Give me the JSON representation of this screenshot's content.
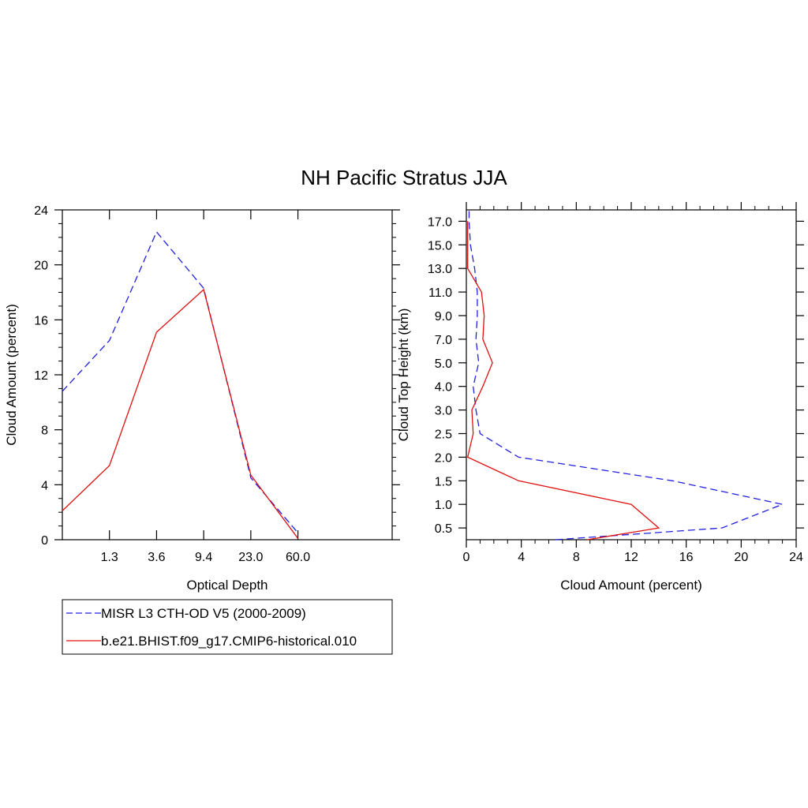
{
  "figure": {
    "title": "NH Pacific Stratus JJA"
  },
  "legend": {
    "entries": [
      "MISR L3 CTH-OD V5 (2000-2009)",
      "b.e21.BHIST.f09_g17.CMIP6-historical.010"
    ]
  },
  "colors": {
    "obs": "#2020e0",
    "model": "#e01010"
  },
  "chart_data": [
    {
      "type": "line",
      "xlabel": "Optical Depth",
      "ylabel": "Cloud Amount (percent)",
      "x_tick_labels": [
        "1.3",
        "3.6",
        "9.4",
        "23.0",
        "60.0"
      ],
      "y_ticks": [
        0,
        4,
        8,
        12,
        16,
        20,
        24
      ],
      "ylim": [
        0,
        24
      ],
      "x_bins": 7,
      "series": [
        {
          "name": "MISR L3 CTH-OD V5 (2000-2009)",
          "style": "dashed",
          "values": [
            10.8,
            14.5,
            22.4,
            18.3,
            4.5,
            0.5
          ]
        },
        {
          "name": "b.e21.BHIST.f09_g17.CMIP6-historical.010",
          "style": "solid",
          "values": [
            2.1,
            5.4,
            15.1,
            18.2,
            4.7,
            0.1
          ]
        }
      ]
    },
    {
      "type": "line",
      "xlabel": "Cloud Amount (percent)",
      "ylabel": "Cloud Top Height (km)",
      "x_ticks": [
        0,
        4,
        8,
        12,
        16,
        20,
        24
      ],
      "xlim": [
        0,
        24
      ],
      "y_tick_labels": [
        "0.5",
        "1.0",
        "1.5",
        "2.0",
        "2.5",
        "3.0",
        "4.0",
        "5.0",
        "7.0",
        "9.0",
        "11.0",
        "13.0",
        "15.0",
        "17.0"
      ],
      "series": [
        {
          "name": "MISR L3 CTH-OD V5 (2000-2009)",
          "style": "dashed",
          "heights": [
            "0.25",
            "0.5",
            "1.0",
            "1.5",
            "2.0",
            "2.5",
            "3.0",
            "4.0",
            "5.0",
            "7.0",
            "9.0",
            "11.0",
            "13.0",
            "15.0",
            "17.0",
            "18.0"
          ],
          "values": [
            6.5,
            18.6,
            23.0,
            15.0,
            3.8,
            1.0,
            0.7,
            0.5,
            0.9,
            0.7,
            0.8,
            0.8,
            0.6,
            0.3,
            0.2,
            0.2
          ]
        },
        {
          "name": "b.e21.BHIST.f09_g17.CMIP6-historical.010",
          "style": "solid",
          "heights": [
            "0.25",
            "0.5",
            "1.0",
            "1.5",
            "2.0",
            "2.5",
            "3.0",
            "4.0",
            "5.0",
            "7.0",
            "9.0",
            "11.0",
            "13.0",
            "15.0",
            "17.0"
          ],
          "values": [
            8.8,
            14.0,
            12.0,
            3.8,
            0.1,
            0.5,
            0.4,
            1.2,
            1.9,
            1.2,
            1.3,
            1.1,
            0.1,
            0.1,
            0.1
          ]
        }
      ]
    }
  ]
}
